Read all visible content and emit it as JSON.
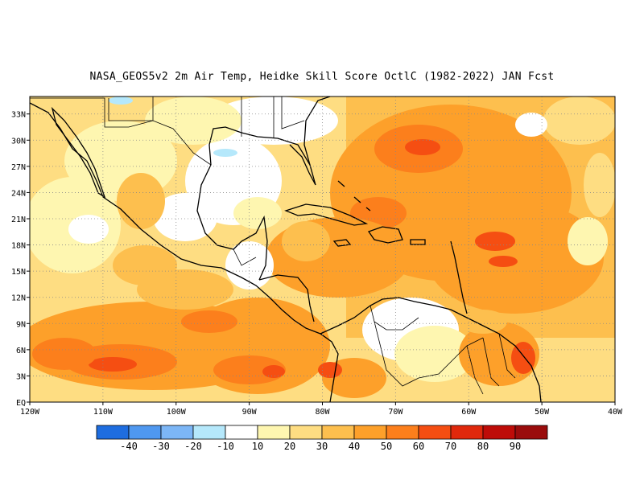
{
  "title": "NASA_GEOS5v2  2m Air Temp, Heidke Skill Score OctlC (1982-2022) JAN Fcst",
  "map": {
    "lon_range": [
      -120,
      -40
    ],
    "lat_range": [
      0,
      35
    ],
    "lat_labels": [
      "EQ",
      "3N",
      "6N",
      "9N",
      "12N",
      "15N",
      "18N",
      "21N",
      "24N",
      "27N",
      "30N",
      "33N"
    ],
    "lat_values": [
      0,
      3,
      6,
      9,
      12,
      15,
      18,
      21,
      24,
      27,
      30,
      33
    ],
    "lon_labels": [
      "120W",
      "110W",
      "100W",
      "90W",
      "80W",
      "70W",
      "60W",
      "50W",
      "40W"
    ],
    "lon_values": [
      -120,
      -110,
      -100,
      -90,
      -80,
      -70,
      -60,
      -50,
      -40
    ],
    "grid": "dotted"
  },
  "colorbar": {
    "colors": [
      "#1e6de0",
      "#4f98f0",
      "#7cb6f6",
      "#b5e8fb",
      "#ffffff",
      "#fef6b0",
      "#fedd82",
      "#fdbf4e",
      "#fda02a",
      "#fc7f1c",
      "#f54e12",
      "#e0280c",
      "#be0c08",
      "#9a0c0c"
    ],
    "labels": [
      "-40",
      "-30",
      "-20",
      "-10",
      "10",
      "20",
      "30",
      "40",
      "50",
      "60",
      "70",
      "80",
      "90"
    ]
  }
}
